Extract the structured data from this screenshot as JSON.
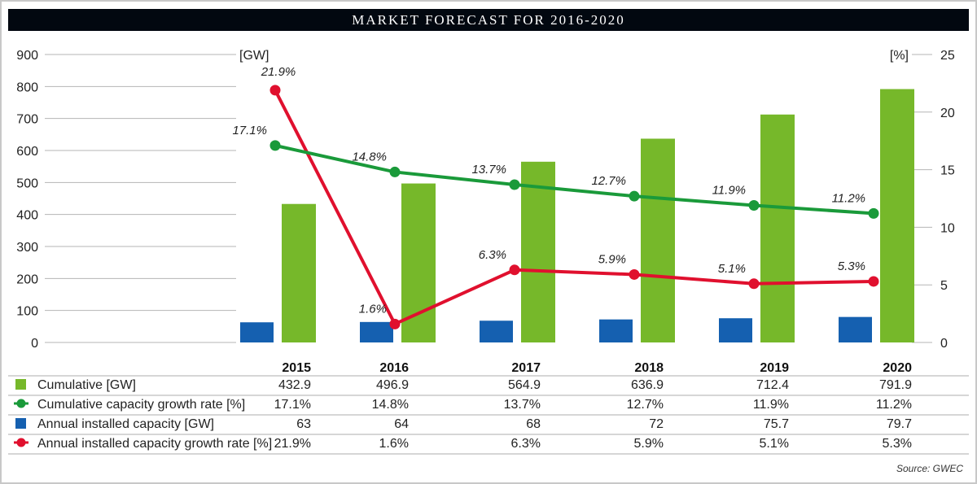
{
  "chart_data": {
    "type": "bar+line",
    "title": "MARKET FORECAST FOR 2016-2020",
    "categories": [
      "2015",
      "2016",
      "2017",
      "2018",
      "2019",
      "2020"
    ],
    "left_axis": {
      "unit_label": "[GW]",
      "ylim": [
        0,
        900
      ],
      "ticks": [
        0,
        100,
        200,
        300,
        400,
        500,
        600,
        700,
        800,
        900
      ]
    },
    "right_axis": {
      "unit_label": "[%]",
      "ylim": [
        0,
        25
      ],
      "ticks": [
        0,
        5,
        10,
        15,
        20,
        25
      ]
    },
    "series": [
      {
        "name": "Cumulative [GW]",
        "type": "bar",
        "axis": "left",
        "color": "#76b82a",
        "values": [
          432.9,
          496.9,
          564.9,
          636.9,
          712.4,
          791.9
        ],
        "table_labels": [
          "432.9",
          "496.9",
          "564.9",
          "636.9",
          "712.4",
          "791.9"
        ]
      },
      {
        "name": "Cumulative capacity growth rate [%]",
        "type": "line",
        "axis": "right",
        "color": "#1a9a3a",
        "values": [
          17.1,
          14.8,
          13.7,
          12.7,
          11.9,
          11.2
        ],
        "table_labels": [
          "17.1%",
          "14.8%",
          "13.7%",
          "12.7%",
          "11.9%",
          "11.2%"
        ]
      },
      {
        "name": "Annual installed capacity [GW]",
        "type": "bar",
        "axis": "left",
        "color": "#1560b0",
        "values": [
          63,
          64,
          68,
          72,
          75.7,
          79.7
        ],
        "table_labels": [
          "63",
          "64",
          "68",
          "72",
          "75.7",
          "79.7"
        ]
      },
      {
        "name": "Annual installed capacity growth rate [%]",
        "type": "line",
        "axis": "right",
        "color": "#e0102e",
        "values": [
          21.9,
          1.6,
          6.3,
          5.9,
          5.1,
          5.3
        ],
        "table_labels": [
          "21.9%",
          "1.6%",
          "6.3%",
          "5.9%",
          "5.1%",
          "5.3%"
        ]
      }
    ],
    "source": "Source: GWEC",
    "grid": false,
    "legend": "bottom table"
  }
}
